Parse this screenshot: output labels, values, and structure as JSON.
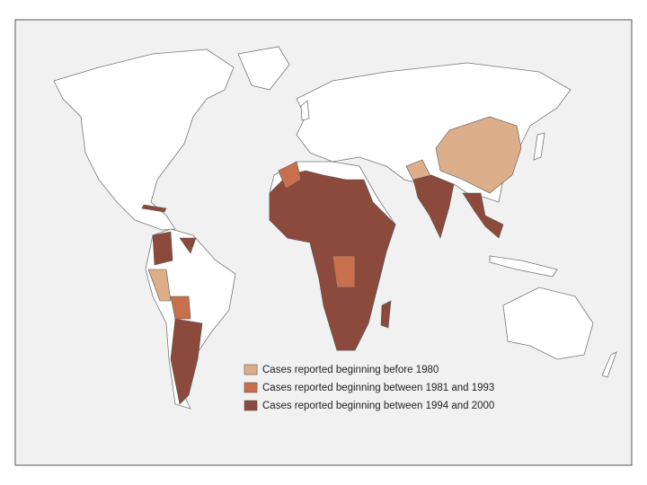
{
  "legend": {
    "items": [
      {
        "label": "Cases reported beginning before 1980",
        "color": "#dcae8a"
      },
      {
        "label": "Cases reported beginning between 1981 and 1993",
        "color": "#c8704e"
      },
      {
        "label": "Cases reported beginning between 1994 and 2000",
        "color": "#8c4a3c"
      }
    ]
  }
}
